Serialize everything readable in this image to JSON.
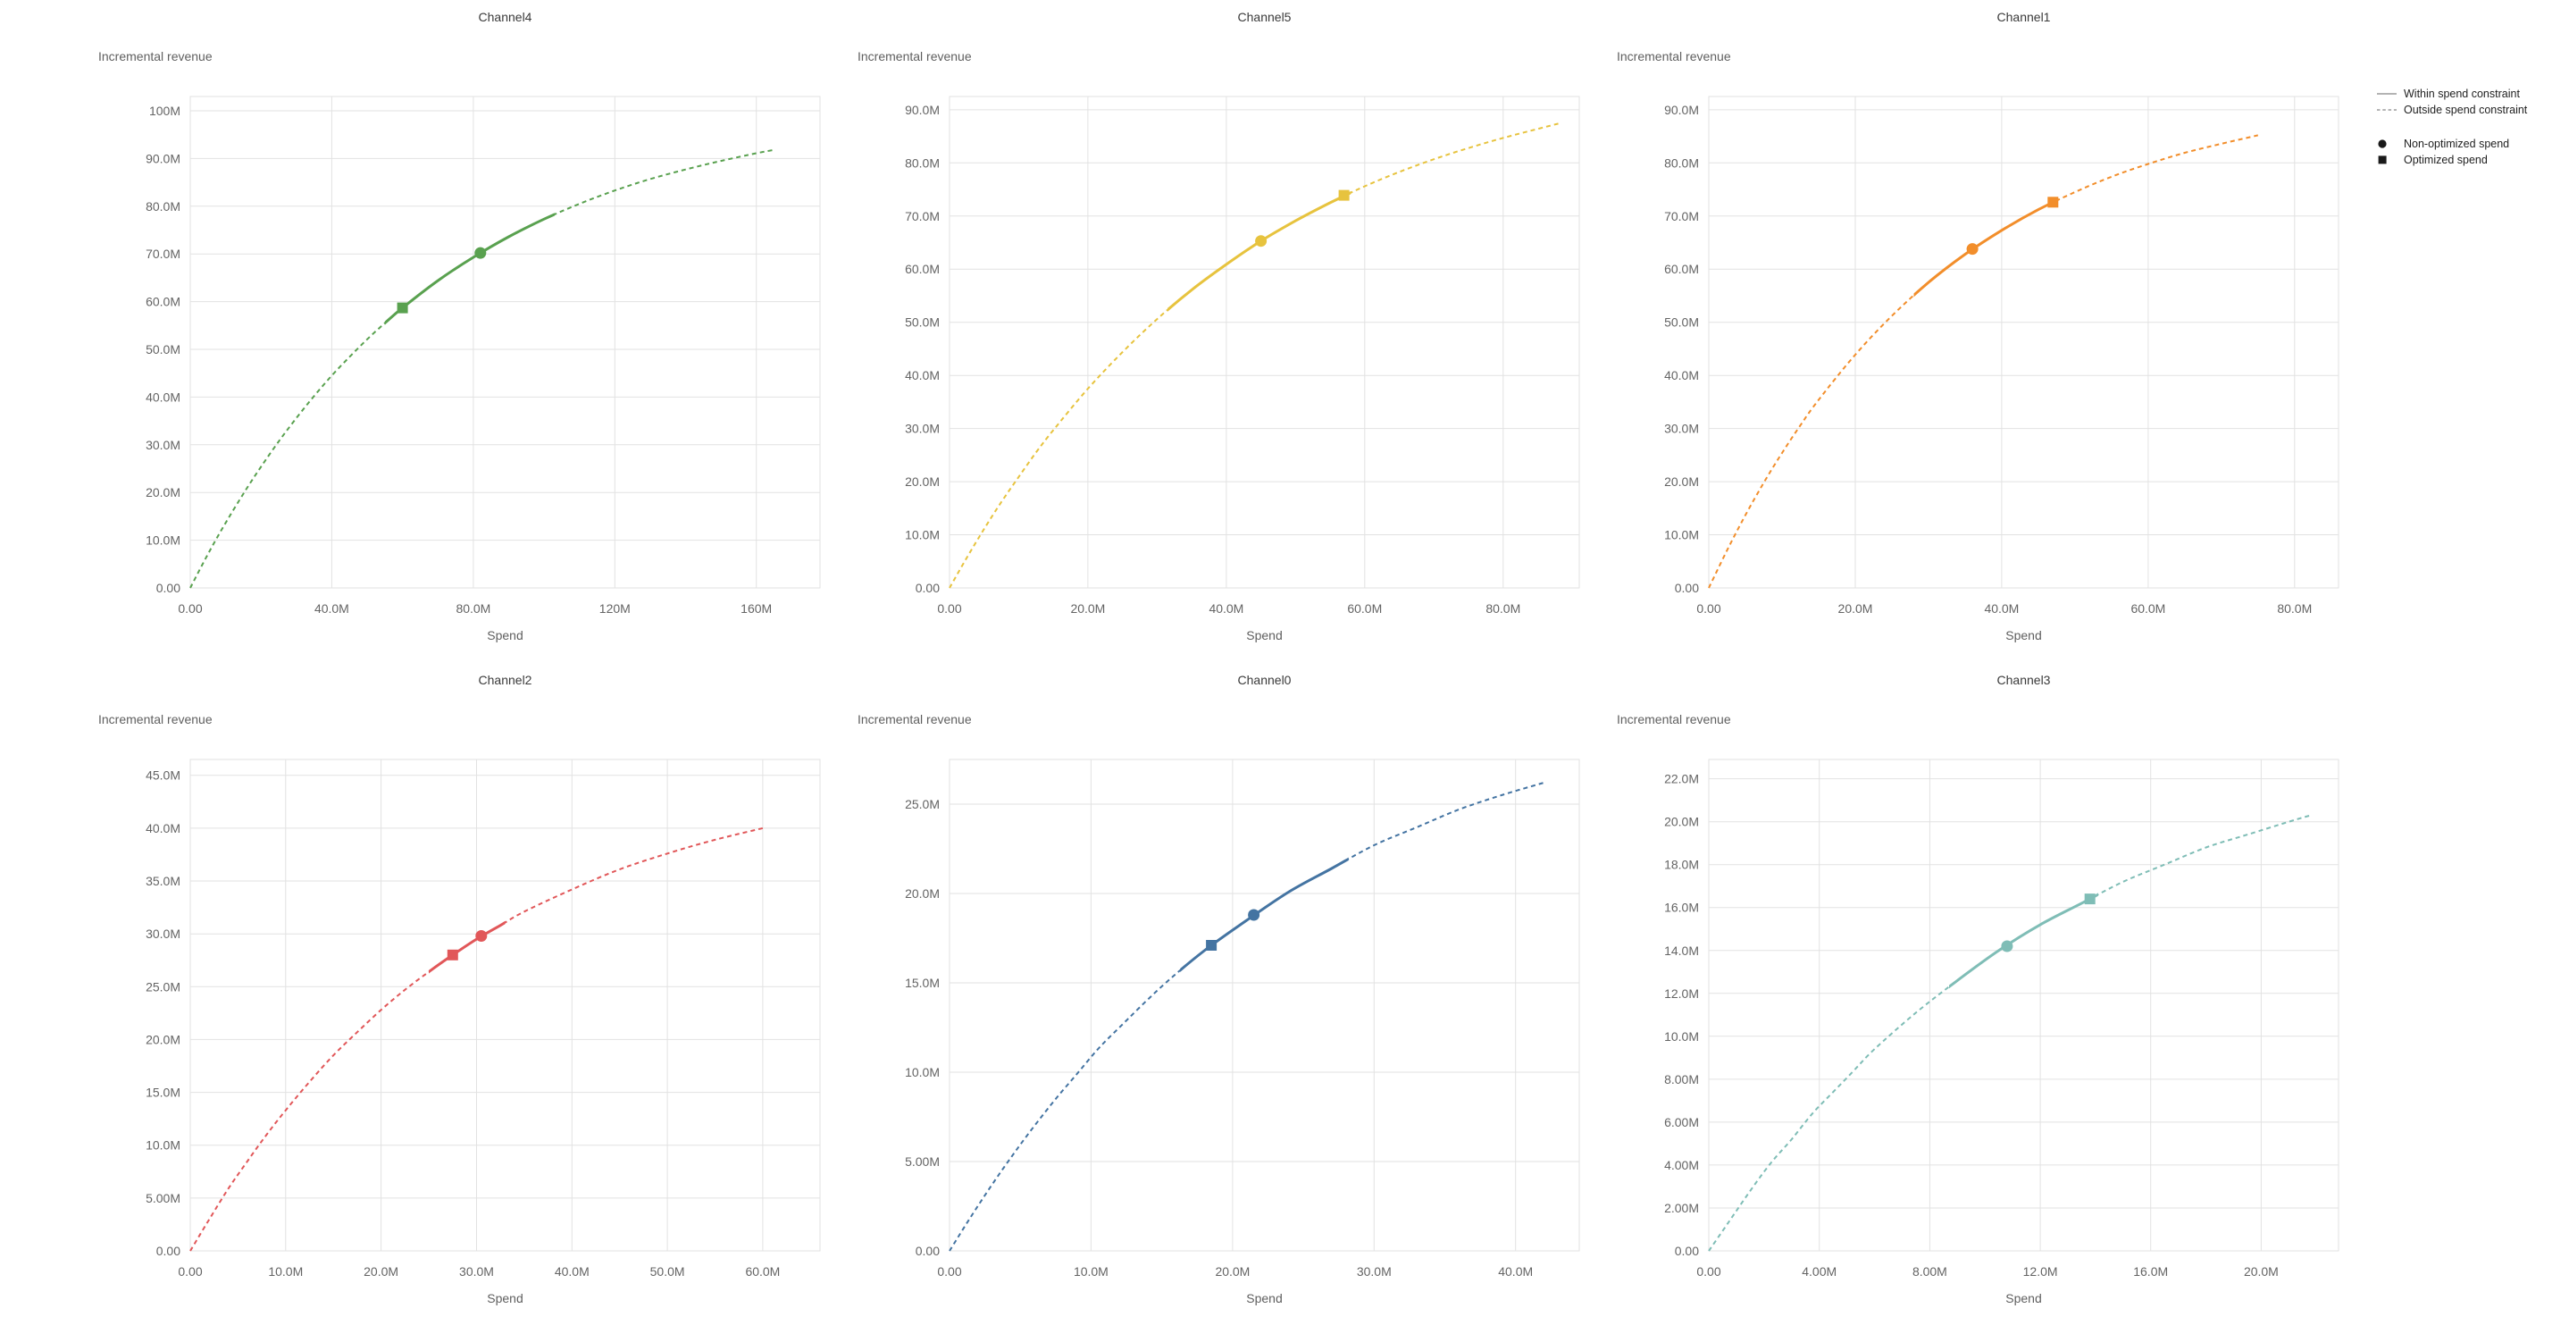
{
  "style": {
    "background": "#ffffff",
    "grid_color": "#e2e2e2",
    "tick_label_color": "#646464",
    "axis_title_color": "#5f5f5f",
    "chart_title_color": "#3a3a3a",
    "legend_text_color": "#1f1f1f",
    "legend_line_color": "#9a9a9a",
    "legend_marker_color": "#1a1a1a"
  },
  "legend": {
    "items": [
      {
        "label": "Within spend constraint",
        "symbol": "solid-line"
      },
      {
        "label": "Outside spend constraint",
        "symbol": "dashed-line"
      },
      {
        "label": "Non-optimized spend",
        "symbol": "circle"
      },
      {
        "label": "Optimized spend",
        "symbol": "square"
      }
    ]
  },
  "chart_data": [
    {
      "type": "line",
      "title": "Channel4",
      "xlabel": "Spend",
      "ylabel": "Incremental revenue",
      "color": "#59a14f",
      "value_unit": "millions",
      "x_domain": [
        0,
        178
      ],
      "y_domain": [
        0,
        103
      ],
      "x_ticks": [
        {
          "v": 0,
          "label": "0.00"
        },
        {
          "v": 40,
          "label": "40.0M"
        },
        {
          "v": 80,
          "label": "80.0M"
        },
        {
          "v": 120,
          "label": "120M"
        },
        {
          "v": 160,
          "label": "160M"
        }
      ],
      "y_ticks": [
        {
          "v": 0,
          "label": "0.00"
        },
        {
          "v": 10,
          "label": "10.0M"
        },
        {
          "v": 20,
          "label": "20.0M"
        },
        {
          "v": 30,
          "label": "30.0M"
        },
        {
          "v": 40,
          "label": "40.0M"
        },
        {
          "v": 50,
          "label": "50.0M"
        },
        {
          "v": 60,
          "label": "60.0M"
        },
        {
          "v": 70,
          "label": "70.0M"
        },
        {
          "v": 80,
          "label": "80.0M"
        },
        {
          "v": 90,
          "label": "90.0M"
        },
        {
          "v": 100,
          "label": "100M"
        }
      ],
      "curve": [
        [
          0,
          0
        ],
        [
          4,
          5.7
        ],
        [
          8,
          11.1
        ],
        [
          12,
          16.1
        ],
        [
          16,
          20.9
        ],
        [
          20,
          25.4
        ],
        [
          25,
          30.7
        ],
        [
          30,
          35.6
        ],
        [
          35,
          40.2
        ],
        [
          40,
          44.5
        ],
        [
          45,
          48.4
        ],
        [
          50,
          52.1
        ],
        [
          55,
          55.5
        ],
        [
          60,
          58.7
        ],
        [
          70,
          64.4
        ],
        [
          80,
          69.3
        ],
        [
          90,
          73.6
        ],
        [
          100,
          77.3
        ],
        [
          110,
          80.5
        ],
        [
          120,
          83.3
        ],
        [
          130,
          85.7
        ],
        [
          140,
          87.7
        ],
        [
          150,
          89.5
        ],
        [
          160,
          91.1
        ],
        [
          165,
          91.8
        ]
      ],
      "solid_range": [
        55,
        103
      ],
      "markers": {
        "non_optimized": [
          82,
          70.2
        ],
        "optimized": [
          60,
          58.7
        ]
      }
    },
    {
      "type": "line",
      "title": "Channel5",
      "xlabel": "Spend",
      "ylabel": "Incremental revenue",
      "color": "#e7c33e",
      "value_unit": "millions",
      "x_domain": [
        0,
        91
      ],
      "y_domain": [
        0,
        92.5
      ],
      "x_ticks": [
        {
          "v": 0,
          "label": "0.00"
        },
        {
          "v": 20,
          "label": "20.0M"
        },
        {
          "v": 40,
          "label": "40.0M"
        },
        {
          "v": 60,
          "label": "60.0M"
        },
        {
          "v": 80,
          "label": "80.0M"
        }
      ],
      "y_ticks": [
        {
          "v": 0,
          "label": "0.00"
        },
        {
          "v": 10,
          "label": "10.0M"
        },
        {
          "v": 20,
          "label": "20.0M"
        },
        {
          "v": 30,
          "label": "30.0M"
        },
        {
          "v": 40,
          "label": "40.0M"
        },
        {
          "v": 50,
          "label": "50.0M"
        },
        {
          "v": 60,
          "label": "60.0M"
        },
        {
          "v": 70,
          "label": "70.0M"
        },
        {
          "v": 80,
          "label": "80.0M"
        },
        {
          "v": 90,
          "label": "90.0M"
        }
      ],
      "curve": [
        [
          0,
          0
        ],
        [
          2.5,
          5.7
        ],
        [
          5,
          11.1
        ],
        [
          7.5,
          16.2
        ],
        [
          10,
          20.9
        ],
        [
          12.5,
          25.5
        ],
        [
          15,
          29.7
        ],
        [
          20,
          37.5
        ],
        [
          25,
          44.4
        ],
        [
          30,
          50.6
        ],
        [
          35,
          56.1
        ],
        [
          40,
          60.9
        ],
        [
          45,
          65.3
        ],
        [
          50,
          69.1
        ],
        [
          55,
          72.5
        ],
        [
          60,
          75.6
        ],
        [
          65,
          78.3
        ],
        [
          70,
          80.7
        ],
        [
          75,
          82.8
        ],
        [
          80,
          84.7
        ],
        [
          85,
          86.4
        ],
        [
          88,
          87.4
        ]
      ],
      "solid_range": [
        31.5,
        58
      ],
      "markers": {
        "non_optimized": [
          45,
          65.3
        ],
        "optimized": [
          57,
          73.9
        ]
      }
    },
    {
      "type": "line",
      "title": "Channel1",
      "xlabel": "Spend",
      "ylabel": "Incremental revenue",
      "color": "#f28e2b",
      "value_unit": "millions",
      "x_domain": [
        0,
        86
      ],
      "y_domain": [
        0,
        92.5
      ],
      "x_ticks": [
        {
          "v": 0,
          "label": "0.00"
        },
        {
          "v": 20,
          "label": "20.0M"
        },
        {
          "v": 40,
          "label": "40.0M"
        },
        {
          "v": 60,
          "label": "60.0M"
        },
        {
          "v": 80,
          "label": "80.0M"
        }
      ],
      "y_ticks": [
        {
          "v": 0,
          "label": "0.00"
        },
        {
          "v": 10,
          "label": "10.0M"
        },
        {
          "v": 20,
          "label": "20.0M"
        },
        {
          "v": 30,
          "label": "30.0M"
        },
        {
          "v": 40,
          "label": "40.0M"
        },
        {
          "v": 50,
          "label": "50.0M"
        },
        {
          "v": 60,
          "label": "60.0M"
        },
        {
          "v": 70,
          "label": "70.0M"
        },
        {
          "v": 80,
          "label": "80.0M"
        },
        {
          "v": 90,
          "label": "90.0M"
        }
      ],
      "curve": [
        [
          0,
          0
        ],
        [
          2.5,
          7.1
        ],
        [
          5,
          13.7
        ],
        [
          7.5,
          19.8
        ],
        [
          10,
          25.4
        ],
        [
          12.5,
          30.6
        ],
        [
          15,
          35.4
        ],
        [
          20,
          43.9
        ],
        [
          25,
          51.2
        ],
        [
          30,
          57.5
        ],
        [
          35,
          62.8
        ],
        [
          40,
          67.3
        ],
        [
          45,
          71.2
        ],
        [
          50,
          74.5
        ],
        [
          55,
          77.4
        ],
        [
          60,
          79.8
        ],
        [
          65,
          81.9
        ],
        [
          70,
          83.6
        ],
        [
          75,
          85.2
        ]
      ],
      "solid_range": [
        28,
        47.2
      ],
      "markers": {
        "non_optimized": [
          36,
          63.8
        ],
        "optimized": [
          47,
          72.6
        ]
      }
    },
    {
      "type": "line",
      "title": "Channel2",
      "xlabel": "Spend",
      "ylabel": "Incremental revenue",
      "color": "#e15759",
      "value_unit": "millions",
      "x_domain": [
        0,
        66
      ],
      "y_domain": [
        0,
        46.5
      ],
      "x_ticks": [
        {
          "v": 0,
          "label": "0.00"
        },
        {
          "v": 10,
          "label": "10.0M"
        },
        {
          "v": 20,
          "label": "20.0M"
        },
        {
          "v": 30,
          "label": "30.0M"
        },
        {
          "v": 40,
          "label": "40.0M"
        },
        {
          "v": 50,
          "label": "50.0M"
        },
        {
          "v": 60,
          "label": "60.0M"
        }
      ],
      "y_ticks": [
        {
          "v": 0,
          "label": "0.00"
        },
        {
          "v": 5,
          "label": "5.00M"
        },
        {
          "v": 10,
          "label": "10.0M"
        },
        {
          "v": 15,
          "label": "15.0M"
        },
        {
          "v": 20,
          "label": "20.0M"
        },
        {
          "v": 25,
          "label": "25.0M"
        },
        {
          "v": 30,
          "label": "30.0M"
        },
        {
          "v": 35,
          "label": "35.0M"
        },
        {
          "v": 40,
          "label": "40.0M"
        },
        {
          "v": 45,
          "label": "45.0M"
        }
      ],
      "curve": [
        [
          0,
          0
        ],
        [
          2,
          3
        ],
        [
          4,
          5.9
        ],
        [
          6,
          8.5
        ],
        [
          8,
          11
        ],
        [
          10,
          13.3
        ],
        [
          12.5,
          16
        ],
        [
          15,
          18.5
        ],
        [
          17.5,
          20.7
        ],
        [
          20,
          22.8
        ],
        [
          22.5,
          24.7
        ],
        [
          25,
          26.4
        ],
        [
          27.5,
          28
        ],
        [
          30,
          29.5
        ],
        [
          32.5,
          30.8
        ],
        [
          35,
          32.1
        ],
        [
          40,
          34.2
        ],
        [
          45,
          36.1
        ],
        [
          50,
          37.6
        ],
        [
          55,
          38.9
        ],
        [
          60,
          40
        ]
      ],
      "solid_range": [
        25,
        33
      ],
      "markers": {
        "non_optimized": [
          30.5,
          29.8
        ],
        "optimized": [
          27.5,
          28
        ]
      }
    },
    {
      "type": "line",
      "title": "Channel0",
      "xlabel": "Spend",
      "ylabel": "Incremental revenue",
      "color": "#4474a2",
      "value_unit": "millions",
      "x_domain": [
        0,
        44.5
      ],
      "y_domain": [
        0,
        27.5
      ],
      "x_ticks": [
        {
          "v": 0,
          "label": "0.00"
        },
        {
          "v": 10,
          "label": "10.0M"
        },
        {
          "v": 20,
          "label": "20.0M"
        },
        {
          "v": 30,
          "label": "30.0M"
        },
        {
          "v": 40,
          "label": "40.0M"
        }
      ],
      "y_ticks": [
        {
          "v": 0,
          "label": "0.00"
        },
        {
          "v": 5,
          "label": "5.00M"
        },
        {
          "v": 10,
          "label": "10.0M"
        },
        {
          "v": 15,
          "label": "15.0M"
        },
        {
          "v": 20,
          "label": "20.0M"
        },
        {
          "v": 25,
          "label": "25.0M"
        }
      ],
      "curve": [
        [
          0,
          0
        ],
        [
          1.5,
          1.9
        ],
        [
          3,
          3.7
        ],
        [
          4.5,
          5.4
        ],
        [
          6,
          7
        ],
        [
          7.5,
          8.5
        ],
        [
          9,
          9.9
        ],
        [
          10.5,
          11.3
        ],
        [
          12,
          12.5
        ],
        [
          15,
          14.8
        ],
        [
          18,
          16.8
        ],
        [
          21,
          18.5
        ],
        [
          24,
          20.1
        ],
        [
          27,
          21.4
        ],
        [
          30,
          22.7
        ],
        [
          33,
          23.7
        ],
        [
          36,
          24.7
        ],
        [
          39,
          25.5
        ],
        [
          42,
          26.2
        ]
      ],
      "solid_range": [
        16.3,
        28.2
      ],
      "markers": {
        "non_optimized": [
          21.5,
          18.8
        ],
        "optimized": [
          18.5,
          17.1
        ]
      }
    },
    {
      "type": "line",
      "title": "Channel3",
      "xlabel": "Spend",
      "ylabel": "Incremental revenue",
      "color": "#7fbdb6",
      "value_unit": "millions",
      "x_domain": [
        0,
        22.8
      ],
      "y_domain": [
        0,
        22.9
      ],
      "x_ticks": [
        {
          "v": 0,
          "label": "0.00"
        },
        {
          "v": 4,
          "label": "4.00M"
        },
        {
          "v": 8,
          "label": "8.00M"
        },
        {
          "v": 12,
          "label": "12.0M"
        },
        {
          "v": 16,
          "label": "16.0M"
        },
        {
          "v": 20,
          "label": "20.0M"
        }
      ],
      "y_ticks": [
        {
          "v": 0,
          "label": "0.00"
        },
        {
          "v": 2,
          "label": "2.00M"
        },
        {
          "v": 4,
          "label": "4.00M"
        },
        {
          "v": 6,
          "label": "6.00M"
        },
        {
          "v": 8,
          "label": "8.00M"
        },
        {
          "v": 10,
          "label": "10.0M"
        },
        {
          "v": 12,
          "label": "12.0M"
        },
        {
          "v": 14,
          "label": "14.0M"
        },
        {
          "v": 16,
          "label": "16.0M"
        },
        {
          "v": 18,
          "label": "18.0M"
        },
        {
          "v": 20,
          "label": "20.0M"
        },
        {
          "v": 22,
          "label": "22.0M"
        }
      ],
      "curve": [
        [
          0,
          0
        ],
        [
          0.75,
          1.4
        ],
        [
          1.5,
          2.8
        ],
        [
          2.25,
          4.1
        ],
        [
          3,
          5.2
        ],
        [
          3.75,
          6.4
        ],
        [
          4.5,
          7.4
        ],
        [
          5.25,
          8.4
        ],
        [
          6,
          9.4
        ],
        [
          7.5,
          11.1
        ],
        [
          9,
          12.6
        ],
        [
          10.5,
          14
        ],
        [
          12,
          15.2
        ],
        [
          13.5,
          16.2
        ],
        [
          15,
          17.2
        ],
        [
          16.5,
          18
        ],
        [
          18,
          18.8
        ],
        [
          19.5,
          19.4
        ],
        [
          21,
          20
        ],
        [
          21.8,
          20.3
        ]
      ],
      "solid_range": [
        8.7,
        14.1
      ],
      "markers": {
        "non_optimized": [
          10.8,
          14.2
        ],
        "optimized": [
          13.8,
          16.4
        ]
      }
    }
  ]
}
